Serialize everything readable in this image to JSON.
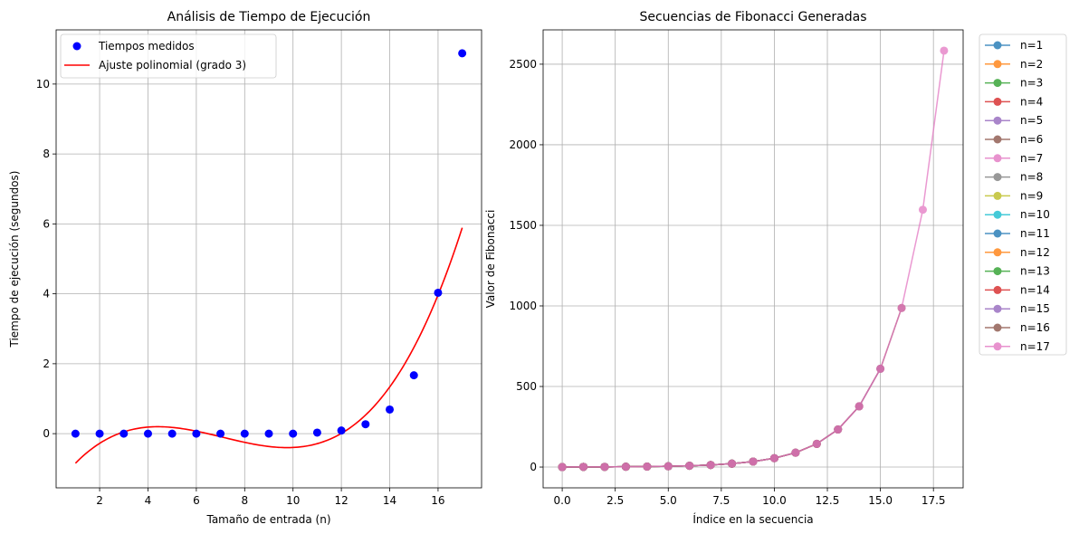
{
  "chart_data": [
    {
      "type": "scatter",
      "title": "Análisis de Tiempo de Ejecución",
      "xlabel": "Tamaño de entrada (n)",
      "ylabel": "Tiempo de ejecución (segundos)",
      "xlim": [
        0.2,
        17.8
      ],
      "ylim": [
        -1.55,
        11.55
      ],
      "xticks": [
        2,
        4,
        6,
        8,
        10,
        12,
        14,
        16
      ],
      "yticks": [
        0,
        2,
        4,
        6,
        8,
        10
      ],
      "grid": true,
      "legend_position": "top-left",
      "series": [
        {
          "name": "Tiempos medidos",
          "kind": "scatter",
          "color": "#0000ff",
          "x": [
            1,
            2,
            3,
            4,
            5,
            6,
            7,
            8,
            9,
            10,
            11,
            12,
            13,
            14,
            15,
            16,
            17
          ],
          "y": [
            0.0,
            0.0,
            0.0,
            0.0,
            0.0,
            0.0,
            0.0,
            0.0,
            0.0,
            0.0,
            0.03,
            0.09,
            0.27,
            0.69,
            1.67,
            4.03,
            10.88
          ]
        },
        {
          "name": "Ajuste polinomial (grado 3)",
          "kind": "line",
          "color": "#ff0000",
          "x_range": [
            1,
            17
          ],
          "coefficients_cubic": [
            0.00785,
            -0.1668,
            1.01345,
            -1.7
          ]
        }
      ]
    },
    {
      "type": "line",
      "title": "Secuencias de Fibonacci Generadas",
      "xlabel": "Índice en la secuencia",
      "ylabel": "Valor de Fibonacci",
      "xlim": [
        -0.9,
        18.9
      ],
      "ylim": [
        -129,
        2713
      ],
      "xticks": [
        0.0,
        2.5,
        5.0,
        7.5,
        10.0,
        12.5,
        15.0,
        17.5
      ],
      "xtick_labels": [
        "0.0",
        "2.5",
        "5.0",
        "7.5",
        "10.0",
        "12.5",
        "15.0",
        "17.5"
      ],
      "yticks": [
        0,
        500,
        1000,
        1500,
        2000,
        2500
      ],
      "grid": true,
      "legend_position": "outside-right",
      "values": [
        0,
        1,
        1,
        2,
        3,
        5,
        8,
        13,
        21,
        34,
        55,
        89,
        144,
        233,
        377,
        610,
        987,
        1597,
        2584
      ],
      "series": [
        {
          "name": "n=1",
          "length": 2,
          "color": "#1f77b4"
        },
        {
          "name": "n=2",
          "length": 3,
          "color": "#ff7f0e"
        },
        {
          "name": "n=3",
          "length": 4,
          "color": "#2ca02c"
        },
        {
          "name": "n=4",
          "length": 5,
          "color": "#d62728"
        },
        {
          "name": "n=5",
          "length": 6,
          "color": "#9467bd"
        },
        {
          "name": "n=6",
          "length": 7,
          "color": "#8c564b"
        },
        {
          "name": "n=7",
          "length": 8,
          "color": "#e377c2"
        },
        {
          "name": "n=8",
          "length": 9,
          "color": "#7f7f7f"
        },
        {
          "name": "n=9",
          "length": 10,
          "color": "#bcbd22"
        },
        {
          "name": "n=10",
          "length": 11,
          "color": "#17becf"
        },
        {
          "name": "n=11",
          "length": 12,
          "color": "#1f77b4"
        },
        {
          "name": "n=12",
          "length": 13,
          "color": "#ff7f0e"
        },
        {
          "name": "n=13",
          "length": 14,
          "color": "#2ca02c"
        },
        {
          "name": "n=14",
          "length": 15,
          "color": "#d62728"
        },
        {
          "name": "n=15",
          "length": 16,
          "color": "#9467bd"
        },
        {
          "name": "n=16",
          "length": 17,
          "color": "#8c564b"
        },
        {
          "name": "n=17",
          "length": 19,
          "color": "#e377c2"
        }
      ]
    }
  ]
}
